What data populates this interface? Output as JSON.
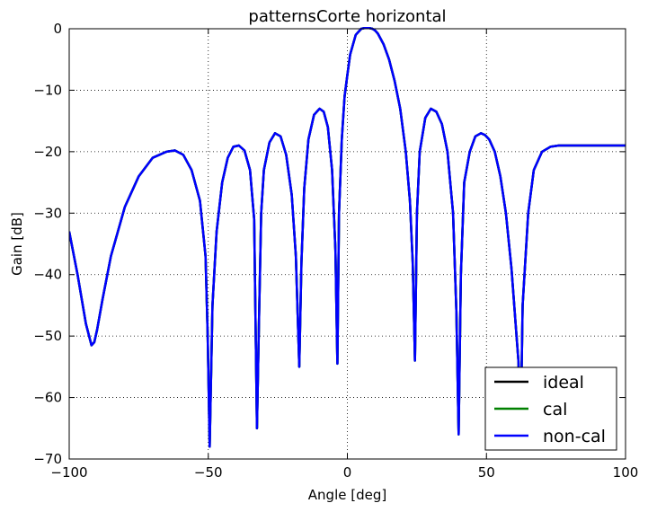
{
  "chart_data": {
    "type": "line",
    "title": "patternsCorte horizontal",
    "xlabel": "Angle [deg]",
    "ylabel": "Gain [dB]",
    "xlim": [
      -100,
      100
    ],
    "ylim": [
      -70,
      0
    ],
    "xticks": [
      -100,
      -50,
      0,
      50,
      100
    ],
    "yticks": [
      0,
      -10,
      -20,
      -30,
      -40,
      -50,
      -60,
      -70
    ],
    "xtick_labels": [
      "−100",
      "−50",
      "0",
      "50",
      "100"
    ],
    "ytick_labels": [
      "0",
      "−10",
      "−20",
      "−30",
      "−40",
      "−50",
      "−60",
      "−70"
    ],
    "grid": true,
    "legend_position": "lower-right",
    "series": [
      {
        "name": "ideal",
        "color": "#000000"
      },
      {
        "name": "cal",
        "color": "#008000"
      },
      {
        "name": "non-cal",
        "color": "#0000ff"
      }
    ],
    "x": [
      -100,
      -97,
      -94,
      -92,
      -91,
      -90,
      -88,
      -85,
      -80,
      -75,
      -70,
      -65,
      -62,
      -59,
      -56,
      -53,
      -51,
      -50.2,
      -49.5,
      -48.5,
      -47,
      -45,
      -43,
      -41,
      -39,
      -37,
      -35,
      -33.5,
      -32.5,
      -31.8,
      -31,
      -30,
      -28,
      -26,
      -24,
      -22,
      -20,
      -18.5,
      -17.3,
      -16.5,
      -15.5,
      -14,
      -12,
      -10,
      -8.5,
      -7,
      -5.5,
      -4.3,
      -3.6,
      -3,
      -2,
      -1,
      0,
      1,
      3,
      5,
      7,
      9,
      10,
      11,
      13,
      15,
      17,
      19,
      21,
      22.5,
      23.5,
      24.3,
      25,
      26,
      28,
      30,
      32,
      34,
      36,
      38,
      39.2,
      40,
      40.8,
      42,
      44,
      46,
      48,
      49.5,
      51,
      53,
      55,
      57,
      59,
      60.5,
      61.5,
      62.3,
      63,
      65,
      67,
      70,
      73,
      76,
      80,
      85,
      90,
      95,
      100
    ],
    "y": [
      -33,
      -40,
      -48,
      -51.5,
      -51,
      -49,
      -44,
      -37,
      -29,
      -24,
      -21,
      -20,
      -19.8,
      -20.5,
      -23,
      -28,
      -37,
      -50,
      -68,
      -45,
      -33,
      -25,
      -21,
      -19.2,
      -19,
      -19.8,
      -23,
      -31,
      -65,
      -48,
      -30,
      -23,
      -18.5,
      -17,
      -17.5,
      -20.5,
      -27,
      -37,
      -55,
      -38,
      -26,
      -18,
      -14,
      -13,
      -13.5,
      -16,
      -23,
      -36,
      -54.5,
      -30,
      -18,
      -11,
      -7.5,
      -4.2,
      -1,
      0,
      0.2,
      0,
      -0.3,
      -0.8,
      -2.5,
      -5,
      -8.5,
      -13,
      -20,
      -28,
      -38,
      -54,
      -30,
      -20,
      -14.5,
      -13,
      -13.5,
      -15.5,
      -20,
      -30,
      -46,
      -66,
      -40,
      -25,
      -20,
      -17.5,
      -17,
      -17.3,
      -18,
      -20,
      -24,
      -30,
      -39,
      -48,
      -54,
      -66,
      -45,
      -30,
      -23,
      -20,
      -19.2,
      -19,
      -19,
      -19,
      -19,
      -19,
      -19
    ]
  }
}
